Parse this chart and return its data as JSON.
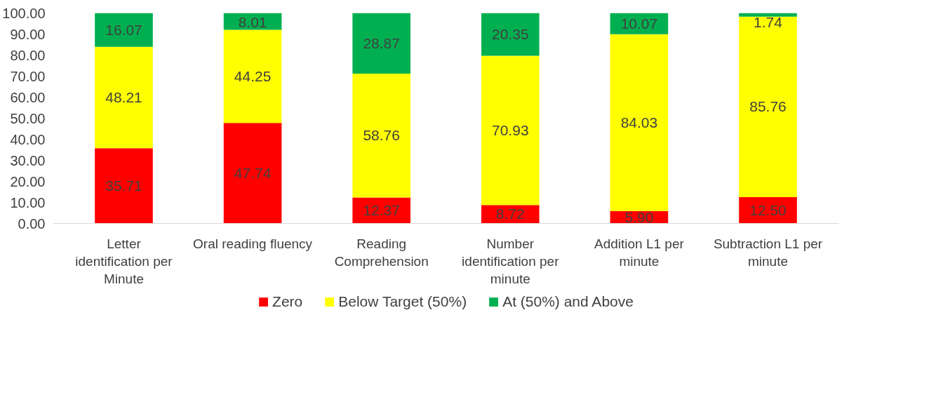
{
  "chart_data": {
    "type": "bar",
    "stacked": true,
    "categories": [
      "Letter identification per Minute",
      "Oral reading fluency",
      "Reading Comprehension",
      "Number identification per minute",
      "Addition L1 per minute",
      "Subtraction L1 per minute"
    ],
    "series": [
      {
        "name": "Zero",
        "color": "#ff0000",
        "values": [
          35.71,
          47.74,
          12.37,
          8.72,
          5.9,
          12.5
        ],
        "value_labels": [
          "35.71",
          "47.74",
          "12.37",
          "8.72",
          "5.90",
          "12.50"
        ]
      },
      {
        "name": "Below Target (50%)",
        "color": "#ffff00",
        "values": [
          48.21,
          44.25,
          58.76,
          70.93,
          84.03,
          85.76
        ],
        "value_labels": [
          "48.21",
          "44.25",
          "58.76",
          "70.93",
          "84.03",
          "85.76"
        ]
      },
      {
        "name": "At (50%) and Above",
        "color": "#00b050",
        "values": [
          16.07,
          8.01,
          28.87,
          20.35,
          10.07,
          1.74
        ],
        "value_labels": [
          "16.07",
          "8.01",
          "28.87",
          "20.35",
          "10.07",
          "1.74"
        ]
      }
    ],
    "ylim": [
      0,
      100
    ],
    "yticks": [
      {
        "value": 0,
        "label": "0.00"
      },
      {
        "value": 10,
        "label": "10.00"
      },
      {
        "value": 20,
        "label": "20.00"
      },
      {
        "value": 30,
        "label": "30.00"
      },
      {
        "value": 40,
        "label": "40.00"
      },
      {
        "value": 50,
        "label": "50.00"
      },
      {
        "value": 60,
        "label": "60.00"
      },
      {
        "value": 70,
        "label": "70.00"
      },
      {
        "value": 80,
        "label": "80.00"
      },
      {
        "value": 90,
        "label": "90.00"
      },
      {
        "value": 100,
        "label": "100.00"
      }
    ],
    "grid": false,
    "legend": "bottom"
  }
}
